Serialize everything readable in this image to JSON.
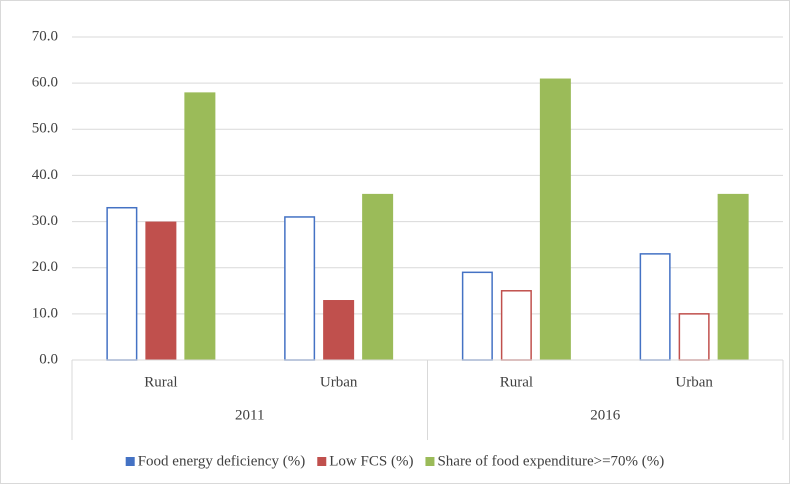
{
  "chart_data": {
    "type": "bar",
    "categories": [
      "Rural",
      "Urban",
      "Rural",
      "Urban"
    ],
    "groups": [
      "2011",
      "2016"
    ],
    "series": [
      {
        "name": "Food energy deficiency (%)",
        "color": "#4472c4",
        "values": [
          33,
          31,
          19,
          23
        ],
        "filled": [
          false,
          false,
          false,
          false
        ]
      },
      {
        "name": "Low FCS (%)",
        "color": "#c0504d",
        "values": [
          30,
          13,
          15,
          10
        ],
        "filled": [
          true,
          true,
          false,
          false
        ]
      },
      {
        "name": "Share of food expenditure>=70% (%)",
        "color": "#9bbb59",
        "values": [
          58,
          36,
          61,
          36
        ],
        "filled": [
          true,
          true,
          true,
          true
        ]
      }
    ],
    "ylim": [
      0,
      70
    ],
    "yticks": [
      {
        "value": 0,
        "label": "0.0"
      },
      {
        "value": 10,
        "label": "10.0"
      },
      {
        "value": 20,
        "label": "20.0"
      },
      {
        "value": 30,
        "label": "30.0"
      },
      {
        "value": 40,
        "label": "40.0"
      },
      {
        "value": 50,
        "label": "50.0"
      },
      {
        "value": 60,
        "label": "60.0"
      },
      {
        "value": 70,
        "label": "70.0"
      }
    ],
    "grid": true,
    "legend": "bottom"
  }
}
